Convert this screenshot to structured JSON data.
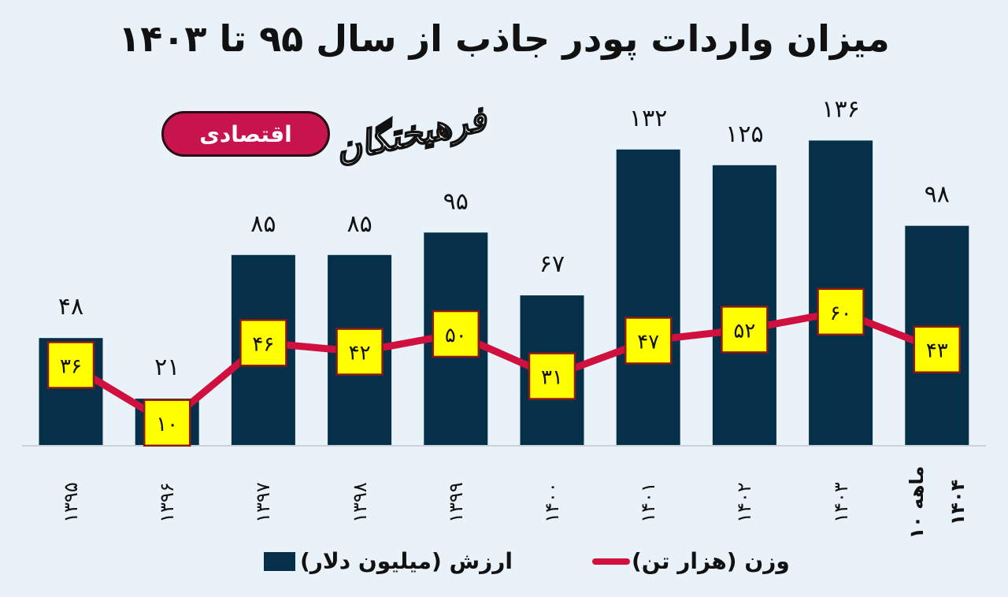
{
  "title": "میزان واردات پودر جاذب از سال ۹۵ تا ۱۴۰۳",
  "brand": {
    "section_pill": "اقتصادی",
    "logo": "فرهیختگان"
  },
  "colors": {
    "background": "#E8F2F8",
    "bar": "#06304A",
    "line": "#D0103F",
    "marker_fill": "#FFFF00",
    "marker_border": "#8B1A10",
    "pill": "#C8144E"
  },
  "legend": {
    "bar_label": "ارزش (میلیون دلار)",
    "line_label": "وزن (هزار تن)"
  },
  "chart_data": {
    "type": "bar",
    "title": "میزان واردات پودر جاذب از سال ۹۵ تا ۱۴۰۳",
    "xlabel": "",
    "ylabel": "",
    "categories": [
      "۱۳۹۵",
      "۱۳۹۶",
      "۱۳۹۷",
      "۱۳۹۸",
      "۱۳۹۹",
      "۱۴۰۰",
      "۱۴۰۱",
      "۱۴۰۲",
      "۱۴۰۳",
      "۱۰ ماهه ۱۴۰۴"
    ],
    "category_lines": [
      [
        "۱۳۹۵"
      ],
      [
        "۱۳۹۶"
      ],
      [
        "۱۳۹۷"
      ],
      [
        "۱۳۹۸"
      ],
      [
        "۱۳۹۹"
      ],
      [
        "۱۴۰۰"
      ],
      [
        "۱۴۰۱"
      ],
      [
        "۱۴۰۲"
      ],
      [
        "۱۴۰۳"
      ],
      [
        "۱۰ ماهه",
        "۱۴۰۴"
      ]
    ],
    "series": [
      {
        "name": "ارزش (میلیون دلار)",
        "type": "bar",
        "values": [
          48,
          21,
          85,
          85,
          95,
          67,
          132,
          125,
          136,
          98
        ],
        "labels": [
          "۴۸",
          "۲۱",
          "۸۵",
          "۸۵",
          "۹۵",
          "۶۷",
          "۱۳۲",
          "۱۲۵",
          "۱۳۶",
          "۹۸"
        ]
      },
      {
        "name": "وزن (هزار تن)",
        "type": "line",
        "values": [
          36,
          10,
          46,
          42,
          50,
          31,
          47,
          52,
          60,
          43
        ],
        "labels": [
          "۳۶",
          "۱۰",
          "۴۶",
          "۴۲",
          "۵۰",
          "۳۱",
          "۴۷",
          "۵۲",
          "۶۰",
          "۴۳"
        ]
      }
    ],
    "grid": false,
    "legend_position": "bottom",
    "ylim": [
      0,
      140
    ]
  }
}
